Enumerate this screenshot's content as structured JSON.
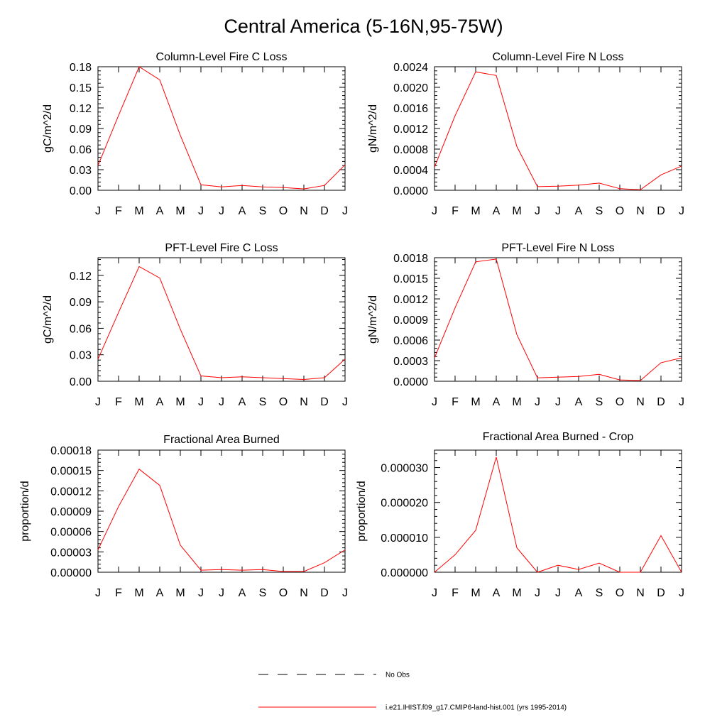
{
  "title": "Central America (5-16N,95-75W)",
  "months": [
    "J",
    "F",
    "M",
    "A",
    "M",
    "J",
    "J",
    "A",
    "S",
    "O",
    "N",
    "D",
    "J"
  ],
  "legend": {
    "obs_label": "No Obs",
    "model_label": "i.e21.IHIST.f09_g17.CMIP6-land-hist.001 (yrs 1995-2014)",
    "model_color": "#ff0000",
    "obs_color": "#000000"
  },
  "chart_data": [
    {
      "type": "line",
      "title": "Column-Level Fire C Loss",
      "ylabel": "gC/m^2/d",
      "ylim": [
        0,
        0.18
      ],
      "yticks": [
        "0.00",
        "0.03",
        "0.06",
        "0.09",
        "0.12",
        "0.15",
        "0.18"
      ],
      "series": [
        {
          "name": "i.e21.IHIST.f09_g17.CMIP6-land-hist.001 (yrs 1995-2014)",
          "values": [
            0.036,
            0.109,
            0.18,
            0.161,
            0.08,
            0.008,
            0.005,
            0.007,
            0.005,
            0.004,
            0.002,
            0.007,
            0.037
          ]
        }
      ]
    },
    {
      "type": "line",
      "title": "Column-Level Fire N Loss",
      "ylabel": "gN/m^2/d",
      "ylim": [
        0,
        0.0024
      ],
      "yticks": [
        "0.0000",
        "0.0004",
        "0.0008",
        "0.0012",
        "0.0016",
        "0.0020",
        "0.0024"
      ],
      "series": [
        {
          "name": "i.e21.IHIST.f09_g17.CMIP6-land-hist.001 (yrs 1995-2014)",
          "values": [
            0.00045,
            0.00145,
            0.0023,
            0.00223,
            0.00085,
            7e-05,
            8e-05,
            0.0001,
            0.00014,
            3e-05,
            1e-05,
            0.0003,
            0.00047
          ]
        }
      ]
    },
    {
      "type": "line",
      "title": "PFT-Level Fire C Loss",
      "ylabel": "gC/m^2/d",
      "ylim": [
        0,
        0.14
      ],
      "yticks": [
        "0.00",
        "0.03",
        "0.06",
        "0.09",
        "0.12"
      ],
      "series": [
        {
          "name": "i.e21.IHIST.f09_g17.CMIP6-land-hist.001 (yrs 1995-2014)",
          "values": [
            0.025,
            0.078,
            0.13,
            0.117,
            0.059,
            0.006,
            0.004,
            0.005,
            0.004,
            0.003,
            0.002,
            0.004,
            0.025
          ]
        }
      ]
    },
    {
      "type": "line",
      "title": "PFT-Level Fire N Loss",
      "ylabel": "gN/m^2/d",
      "ylim": [
        0,
        0.0018
      ],
      "yticks": [
        "0.0000",
        "0.0003",
        "0.0006",
        "0.0009",
        "0.0012",
        "0.0015",
        "0.0018"
      ],
      "series": [
        {
          "name": "i.e21.IHIST.f09_g17.CMIP6-land-hist.001 (yrs 1995-2014)",
          "values": [
            0.00034,
            0.00107,
            0.00174,
            0.00178,
            0.00068,
            5e-05,
            6e-05,
            7e-05,
            0.0001,
            2e-05,
            1e-05,
            0.00027,
            0.00034
          ]
        }
      ]
    },
    {
      "type": "line",
      "title": "Fractional Area Burned",
      "ylabel": "proportion/d",
      "ylim": [
        0,
        0.00018
      ],
      "yticks": [
        "0.00000",
        "0.00003",
        "0.00006",
        "0.00009",
        "0.00012",
        "0.00015",
        "0.00018"
      ],
      "series": [
        {
          "name": "i.e21.IHIST.f09_g17.CMIP6-land-hist.001 (yrs 1995-2014)",
          "values": [
            3.3e-05,
            9.7e-05,
            0.000152,
            0.000128,
            4e-05,
            3e-06,
            4e-06,
            3e-06,
            4e-06,
            1e-06,
            1e-06,
            1.4e-05,
            3.3e-05
          ]
        }
      ]
    },
    {
      "type": "line",
      "title": "Fractional Area Burned - Crop",
      "ylabel": "proportion/d",
      "ylim": [
        0,
        3.5e-05
      ],
      "yticks": [
        "0.000000",
        "0.000010",
        "0.000020",
        "0.000030"
      ],
      "series": [
        {
          "name": "i.e21.IHIST.f09_g17.CMIP6-land-hist.001 (yrs 1995-2014)",
          "values": [
            0.0,
            5e-06,
            1.2e-05,
            3.3e-05,
            7e-06,
            0.0,
            2e-06,
            8e-07,
            2.6e-06,
            0.0,
            0.0,
            1.05e-05,
            0.0
          ]
        }
      ]
    }
  ]
}
